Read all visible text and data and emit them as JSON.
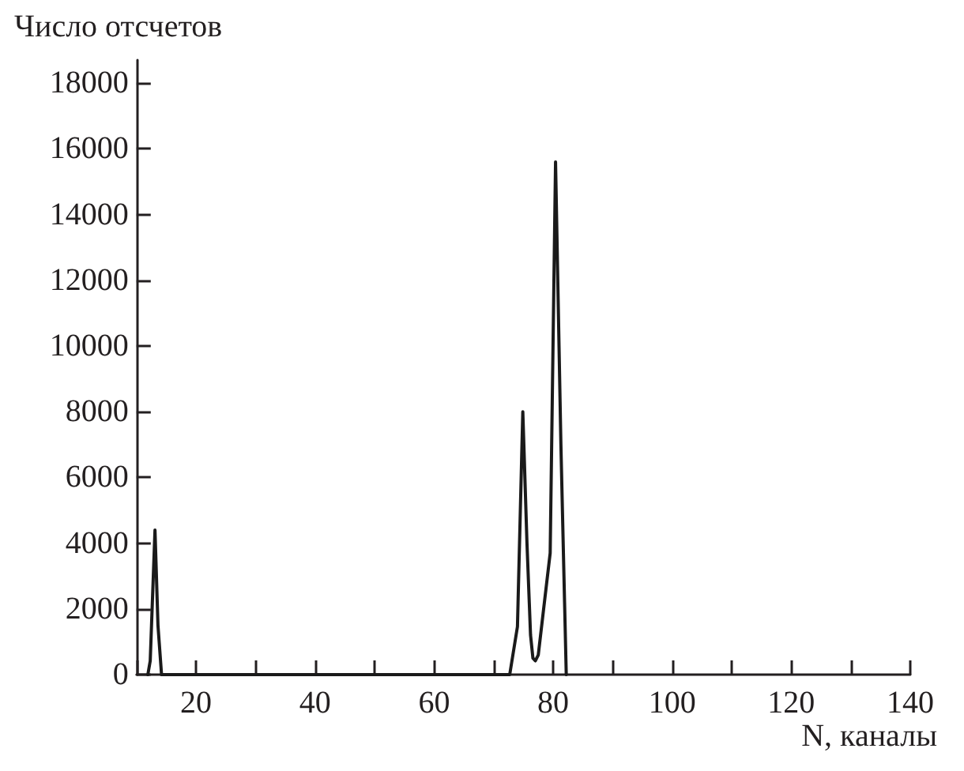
{
  "chart_data": {
    "type": "line",
    "xlabel": "N, каналы",
    "ylabel": "Число отсчетов",
    "series": [
      {
        "color": "#1a1a1a",
        "x": [
          11.9,
          12.3,
          13.1,
          13.6,
          14.2,
          72.7,
          74.0,
          74.9,
          75.6,
          76.2,
          76.6,
          77.0,
          77.5,
          78.4,
          79.5,
          80.4,
          81.3,
          82.2
        ],
        "values": [
          0,
          420,
          4400,
          1500,
          0,
          0,
          1460,
          8000,
          4000,
          1200,
          500,
          420,
          600,
          2000,
          3700,
          15600,
          7000,
          0
        ]
      }
    ],
    "xlim": [
      10,
      140
    ],
    "xticks": [
      {
        "value": 10,
        "label": null
      },
      20,
      {
        "value": 30,
        "label": null
      },
      40,
      {
        "value": 50,
        "label": null
      },
      60,
      {
        "value": 70,
        "label": null
      },
      80,
      {
        "value": 90,
        "label": null
      },
      100,
      {
        "value": 110,
        "label": null
      },
      120,
      {
        "value": 130,
        "label": null
      },
      140
    ],
    "ylim": [
      0,
      18700
    ],
    "yticks": [
      0,
      2000,
      4000,
      6000,
      8000,
      10000,
      12000,
      14000,
      16000,
      18000
    ],
    "grid": false,
    "marker": "none",
    "line_style": "solid"
  }
}
